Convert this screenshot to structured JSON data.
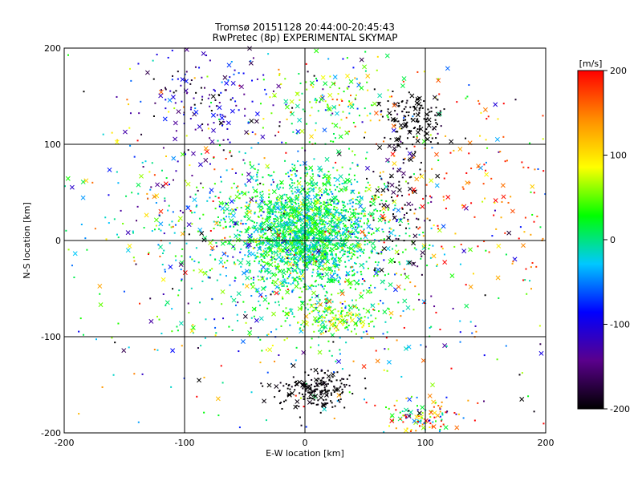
{
  "chart_data": {
    "type": "scatter",
    "title": "Tromsø 20151128 20:44:00-20:45:43",
    "subtitle": "RwPretec (8p) EXPERIMENTAL SKYMAP",
    "xlabel": "E-W location [km]",
    "ylabel": "N-S location [km]",
    "xlim": [
      -200,
      200
    ],
    "ylim": [
      -200,
      200
    ],
    "x_ticks": [
      "-200",
      "-100",
      "0",
      "100",
      "200"
    ],
    "y_ticks": [
      "-200",
      "-100",
      "0",
      "100",
      "200"
    ],
    "grid": true,
    "colorbar": {
      "label": "[m/s]",
      "range": [
        -200,
        200
      ],
      "ticks": [
        "-200",
        "-100",
        "0",
        "100",
        "200"
      ],
      "colormap": [
        "#000000",
        "#5a008c",
        "#0000ff",
        "#00c8ff",
        "#00ff00",
        "#ffff00",
        "#ff8c00",
        "#ff0000"
      ]
    },
    "clusters": [
      {
        "cx": 0,
        "cy": 10,
        "sx": 28,
        "sy": 30,
        "n": 1700,
        "v": 10,
        "sv": 30
      },
      {
        "cx": 0,
        "cy": -20,
        "sx": 45,
        "sy": 45,
        "n": 500,
        "v": 0,
        "sv": 35
      },
      {
        "cx": 0,
        "cy": 0,
        "sx": 115,
        "sy": 115,
        "n": 700,
        "v": 0,
        "sv": 120
      },
      {
        "cx": -85,
        "cy": 145,
        "sx": 30,
        "sy": 30,
        "n": 170,
        "v": -130,
        "sv": 45
      },
      {
        "cx": 90,
        "cy": 125,
        "sx": 15,
        "sy": 15,
        "n": 150,
        "v": -200,
        "sv": 5
      },
      {
        "cx": 10,
        "cy": -155,
        "sx": 15,
        "sy": 10,
        "n": 190,
        "v": -200,
        "sv": 5
      },
      {
        "cx": 80,
        "cy": 40,
        "sx": 15,
        "sy": 40,
        "n": 100,
        "v": -190,
        "sv": 25
      },
      {
        "cx": 25,
        "cy": -82,
        "sx": 20,
        "sy": 10,
        "n": 150,
        "v": 55,
        "sv": 35
      },
      {
        "cx": 20,
        "cy": 145,
        "sx": 25,
        "sy": 20,
        "n": 120,
        "v": 40,
        "sv": 50
      },
      {
        "cx": 100,
        "cy": -185,
        "sx": 20,
        "sy": 10,
        "n": 110,
        "v": 60,
        "sv": 120
      },
      {
        "cx": 130,
        "cy": 40,
        "sx": 55,
        "sy": 60,
        "n": 160,
        "v": 160,
        "sv": 50
      },
      {
        "cx": -100,
        "cy": 30,
        "sx": 40,
        "sy": 50,
        "n": 140,
        "v": 0,
        "sv": 110
      }
    ]
  }
}
